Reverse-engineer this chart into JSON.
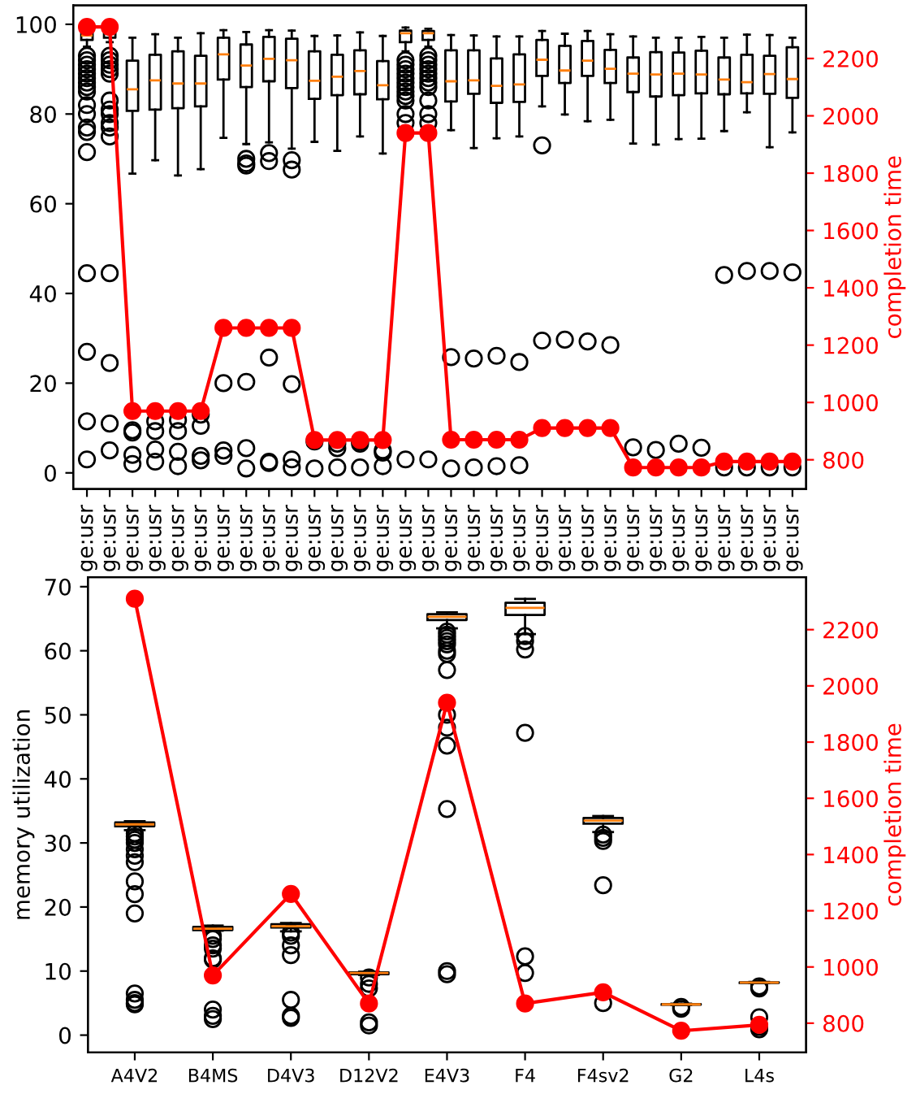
{
  "chart_data": [
    {
      "type": "box",
      "y2label": "completion time",
      "ylim": [
        -3.6,
        104.2
      ],
      "yticks": [
        0,
        20,
        40,
        60,
        80,
        100
      ],
      "y2lim": [
        698,
        2385
      ],
      "y2ticks": [
        800,
        1000,
        1200,
        1400,
        1600,
        1800,
        2000,
        2200
      ],
      "categories": [
        "ge:usr",
        "ge:usr",
        "ge:usr",
        "ge:usr",
        "ge:usr",
        "ge:usr",
        "ge:usr",
        "ge:usr",
        "ge:usr",
        "ge:usr",
        "ge:usr",
        "ge:usr",
        "ge:usr",
        "ge:usr",
        "ge:usr",
        "ge:usr",
        "ge:usr",
        "ge:usr",
        "ge:usr",
        "ge:usr",
        "ge:usr",
        "ge:usr",
        "ge:usr",
        "ge:usr",
        "ge:usr",
        "ge:usr",
        "ge:usr",
        "ge:usr",
        "ge:usr",
        "ge:usr",
        "ge:usr",
        "ge:usr"
      ],
      "boxes": [
        {
          "low": 95,
          "q1": 96.5,
          "median": 97.5,
          "q3": 98.5,
          "high": 99.5,
          "outliers": [
            93,
            92,
            91,
            90,
            89,
            88,
            87,
            86,
            85,
            82,
            80,
            77,
            76,
            71.5,
            44.5,
            27,
            11.5,
            3
          ]
        },
        {
          "low": 96,
          "q1": 97,
          "median": 98,
          "q3": 99,
          "high": 99.6,
          "outliers": [
            93,
            92,
            91,
            90,
            89,
            83,
            81,
            80,
            78,
            77,
            75,
            44.5,
            24.5,
            11,
            5
          ]
        },
        {
          "low": 66.7,
          "q1": 80.7,
          "median": 85.5,
          "q3": 91.9,
          "high": 97,
          "outliers": [
            9.5,
            9,
            4,
            2
          ]
        },
        {
          "low": 69.7,
          "q1": 81,
          "median": 87.5,
          "q3": 93.2,
          "high": 97.8,
          "outliers": [
            11.5,
            9.3,
            5.2,
            2.5
          ]
        },
        {
          "low": 66.3,
          "q1": 81.3,
          "median": 86.8,
          "q3": 94,
          "high": 97,
          "outliers": [
            11.8,
            9.3,
            4.7,
            1.5
          ]
        },
        {
          "low": 67.7,
          "q1": 81.7,
          "median": 86.8,
          "q3": 93,
          "high": 98,
          "outliers": [
            13,
            10.5,
            3.8,
            2.8
          ]
        },
        {
          "low": 74.7,
          "q1": 87.7,
          "median": 93.3,
          "q3": 97,
          "high": 98.7,
          "outliers": [
            20,
            5,
            3.8
          ]
        },
        {
          "low": 73.3,
          "q1": 86,
          "median": 90.8,
          "q3": 95.5,
          "high": 98.3,
          "outliers": [
            70,
            69,
            68.5,
            20.3,
            5.5,
            1
          ]
        },
        {
          "low": 73.7,
          "q1": 87.3,
          "median": 92.3,
          "q3": 97.2,
          "high": 98.7,
          "outliers": [
            71.3,
            69.5,
            25.7,
            2.5,
            2.2
          ]
        },
        {
          "low": 72.3,
          "q1": 85.8,
          "median": 92,
          "q3": 96.8,
          "high": 98.6,
          "outliers": [
            69.7,
            67.6,
            19.8,
            3,
            1.2
          ]
        },
        {
          "low": 73.8,
          "q1": 83.4,
          "median": 87.4,
          "q3": 94,
          "high": 97.4,
          "outliers": [
            7,
            1
          ]
        },
        {
          "low": 71.8,
          "q1": 84.2,
          "median": 88.3,
          "q3": 93.2,
          "high": 97.5,
          "outliers": [
            6.5,
            5.5,
            1.2
          ]
        },
        {
          "low": 75,
          "q1": 84.4,
          "median": 89.6,
          "q3": 94.2,
          "high": 98.2,
          "outliers": [
            7,
            6.5,
            1.2
          ]
        },
        {
          "low": 71.2,
          "q1": 83.3,
          "median": 86.4,
          "q3": 91.8,
          "high": 97.4,
          "outliers": [
            5,
            4.5,
            1.5
          ]
        },
        {
          "low": 94,
          "q1": 96,
          "median": 98,
          "q3": 98.6,
          "high": 99.3,
          "outliers": [
            92,
            91,
            90,
            89,
            88,
            87,
            86,
            85,
            84,
            83,
            80,
            78,
            3
          ]
        },
        {
          "low": 95,
          "q1": 96.5,
          "median": 98,
          "q3": 98.5,
          "high": 99,
          "outliers": [
            93,
            92,
            91,
            90,
            89,
            88,
            87,
            86,
            83,
            80,
            78,
            3
          ]
        },
        {
          "low": 76.4,
          "q1": 82.8,
          "median": 87.3,
          "q3": 94.2,
          "high": 97.6,
          "outliers": [
            25.8,
            1
          ]
        },
        {
          "low": 72.4,
          "q1": 84.5,
          "median": 87.5,
          "q3": 94.2,
          "high": 97.5,
          "outliers": [
            25.5,
            1.2
          ]
        },
        {
          "low": 74.6,
          "q1": 82.5,
          "median": 86.3,
          "q3": 92.4,
          "high": 97.3,
          "outliers": [
            26.1,
            1.5
          ]
        },
        {
          "low": 75,
          "q1": 82.7,
          "median": 86.6,
          "q3": 93.3,
          "high": 97.3,
          "outliers": [
            24.7,
            1.7
          ]
        },
        {
          "low": 81.7,
          "q1": 88.5,
          "median": 92.1,
          "q3": 96.5,
          "high": 98.5,
          "outliers": [
            73,
            29.5
          ]
        },
        {
          "low": 79.9,
          "q1": 86.9,
          "median": 89.7,
          "q3": 95.2,
          "high": 97.9,
          "outliers": [
            29.7
          ]
        },
        {
          "low": 78.4,
          "q1": 88.5,
          "median": 91.9,
          "q3": 96.3,
          "high": 98.5,
          "outliers": [
            29.3
          ]
        },
        {
          "low": 78.7,
          "q1": 86.9,
          "median": 90.1,
          "q3": 94.3,
          "high": 97.8,
          "outliers": [
            28.5
          ]
        },
        {
          "low": 73.4,
          "q1": 84.9,
          "median": 89,
          "q3": 92.6,
          "high": 97.3,
          "outliers": [
            5.7
          ]
        },
        {
          "low": 73.2,
          "q1": 83.9,
          "median": 88.8,
          "q3": 93.8,
          "high": 97,
          "outliers": [
            5.1
          ]
        },
        {
          "low": 74.4,
          "q1": 84.2,
          "median": 89,
          "q3": 93.7,
          "high": 97,
          "outliers": [
            6.5
          ]
        },
        {
          "low": 74.5,
          "q1": 84.6,
          "median": 88.8,
          "q3": 94.1,
          "high": 97.2,
          "outliers": [
            5.6
          ]
        },
        {
          "low": 76.2,
          "q1": 84.4,
          "median": 87.7,
          "q3": 92.6,
          "high": 97,
          "outliers": [
            44.1,
            1.2
          ]
        },
        {
          "low": 80.4,
          "q1": 84.6,
          "median": 87.1,
          "q3": 93.2,
          "high": 97.7,
          "outliers": [
            45,
            1.2
          ]
        },
        {
          "low": 72.6,
          "q1": 84.5,
          "median": 88.9,
          "q3": 93,
          "high": 97.6,
          "outliers": [
            45,
            1.2
          ]
        },
        {
          "low": 75.9,
          "q1": 83.6,
          "median": 87.8,
          "q3": 94.9,
          "high": 97,
          "outliers": [
            44.7,
            1.2
          ]
        }
      ],
      "series": [
        {
          "type": "line",
          "axis": "y2",
          "color": "#ff0000",
          "marker": "circle",
          "values": [
            2310,
            2310,
            970,
            970,
            970,
            970,
            1260,
            1260,
            1260,
            1260,
            869,
            869,
            869,
            869,
            1940,
            1940,
            870,
            870,
            870,
            870,
            911,
            911,
            911,
            911,
            773,
            773,
            773,
            773,
            794,
            794,
            794,
            794
          ]
        }
      ]
    },
    {
      "type": "box",
      "ylabel": "memory utilization",
      "y2label": "completion time",
      "ylim": [
        -2.7,
        71.5
      ],
      "yticks": [
        0,
        10,
        20,
        30,
        40,
        50,
        60,
        70
      ],
      "y2lim": [
        696,
        2387
      ],
      "y2ticks": [
        800,
        1000,
        1200,
        1400,
        1600,
        1800,
        2000,
        2200
      ],
      "categories": [
        "A4V2",
        "B4MS",
        "D4V3",
        "D12V2",
        "E4V3",
        "F4",
        "F4sv2",
        "G2",
        "L4s"
      ],
      "boxes": [
        {
          "low": 32,
          "q1": 32.6,
          "median": 32.9,
          "q3": 33.2,
          "high": 33.4,
          "outliers": [
            31.5,
            31,
            30.5,
            30,
            29,
            28,
            27,
            24,
            22,
            19,
            6.5,
            5.5,
            5,
            4.8
          ]
        },
        {
          "low": 16.3,
          "q1": 16.4,
          "median": 16.6,
          "q3": 16.9,
          "high": 17.1,
          "outliers": [
            15.5,
            15,
            14,
            13.5,
            12,
            11.8,
            4,
            3,
            2.5
          ]
        },
        {
          "low": 16.2,
          "q1": 16.8,
          "median": 17,
          "q3": 17.3,
          "high": 17.5,
          "outliers": [
            16,
            15.5,
            14,
            12.5,
            5.5,
            3,
            2.7
          ]
        },
        {
          "low": 9.4,
          "q1": 9.5,
          "median": 9.7,
          "q3": 9.8,
          "high": 9.9,
          "outliers": [
            9,
            8,
            7.3,
            2,
            1.5
          ]
        },
        {
          "low": 63.5,
          "q1": 64.8,
          "median": 65.3,
          "q3": 65.7,
          "high": 66,
          "outliers": [
            63,
            62.5,
            62,
            61.5,
            61,
            60,
            59.5,
            57,
            50,
            48,
            45.2,
            35.3,
            10,
            9.5
          ]
        },
        {
          "low": 62.6,
          "q1": 65.6,
          "median": 66.7,
          "q3": 67.5,
          "high": 68.1,
          "outliers": [
            62.3,
            61.5,
            60.2,
            47.2,
            12.3,
            9.7
          ]
        },
        {
          "low": 31.7,
          "q1": 33,
          "median": 33.5,
          "q3": 33.9,
          "high": 34.2,
          "outliers": [
            31.3,
            30.8,
            30.3,
            23.4,
            5
          ]
        },
        {
          "low": 4.7,
          "q1": 4.75,
          "median": 4.8,
          "q3": 4.85,
          "high": 4.9,
          "outliers": [
            4.4,
            4.1
          ]
        },
        {
          "low": 8.1,
          "q1": 8.15,
          "median": 8.2,
          "q3": 8.25,
          "high": 8.3,
          "outliers": [
            7.6,
            7.3,
            2.8,
            1.3,
            0.9
          ]
        }
      ],
      "series": [
        {
          "type": "line",
          "axis": "y2",
          "color": "#ff0000",
          "marker": "circle",
          "values": [
            2310,
            970,
            1260,
            870,
            1940,
            870,
            910,
            773,
            794
          ]
        }
      ]
    }
  ]
}
